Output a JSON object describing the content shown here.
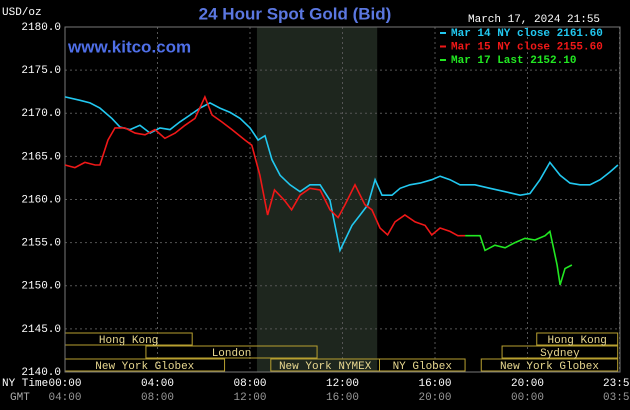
{
  "chart_data": {
    "type": "line",
    "title": "24 Hour Spot Gold (Bid)",
    "unit_label": "USD/oz",
    "timestamp": "March 17, 2024 21:55",
    "watermark": "www.kitco.com",
    "x_row_labels": [
      "NY Time",
      "GMT"
    ],
    "xlim": [
      0,
      24
    ],
    "ylim": [
      2140,
      2180
    ],
    "xticks": [
      {
        "value": 0,
        "label": "00:00"
      },
      {
        "value": 4,
        "label": "04:00"
      },
      {
        "value": 8,
        "label": "08:00"
      },
      {
        "value": 12,
        "label": "12:00"
      },
      {
        "value": 16,
        "label": "16:00"
      },
      {
        "value": 20,
        "label": "20:00"
      },
      {
        "value": 23.98,
        "label": "23:59"
      }
    ],
    "x2ticks": [
      {
        "value": 0,
        "label": "04:00"
      },
      {
        "value": 4,
        "label": "08:00"
      },
      {
        "value": 8,
        "label": "12:00"
      },
      {
        "value": 12,
        "label": "16:00"
      },
      {
        "value": 16,
        "label": "20:00"
      },
      {
        "value": 20,
        "label": "00:00"
      },
      {
        "value": 23.98,
        "label": "03:59"
      }
    ],
    "yticks": [
      {
        "value": 2180,
        "label": "2180.0"
      },
      {
        "value": 2175,
        "label": "2175.0"
      },
      {
        "value": 2170,
        "label": "2170.0"
      },
      {
        "value": 2165,
        "label": "2165.0"
      },
      {
        "value": 2160,
        "label": "2160.0"
      },
      {
        "value": 2155,
        "label": "2155.0"
      },
      {
        "value": 2150,
        "label": "2150.0"
      },
      {
        "value": 2145,
        "label": "2145.0"
      },
      {
        "value": 2140,
        "label": "2140.0"
      }
    ],
    "grid": true,
    "legend": "top-right",
    "highlight": [
      8.3,
      13.5
    ],
    "series": [
      {
        "name": "Mar 14 NY close 2161.60",
        "color": "#22c8f0",
        "x": [
          0,
          0.65,
          1.08,
          1.51,
          2.03,
          2.38,
          2.81,
          3.24,
          3.68,
          4.11,
          4.54,
          4.97,
          5.41,
          5.84,
          6.27,
          6.7,
          7.14,
          7.57,
          8.0,
          8.35,
          8.65,
          8.95,
          9.3,
          9.73,
          10.16,
          10.59,
          11.03,
          11.46,
          11.89,
          12.11,
          12.41,
          12.76,
          13.1,
          13.41,
          13.71,
          14.14,
          14.49,
          14.92,
          15.35,
          15.86,
          16.22,
          16.65,
          17.08,
          17.73,
          18.38,
          19.03,
          19.68,
          20.11,
          20.54,
          20.97,
          21.41,
          21.84,
          22.27,
          22.7,
          23.14,
          23.57,
          23.91
        ],
        "values": [
          2171.9,
          2171.5,
          2171.2,
          2170.6,
          2169.4,
          2168.4,
          2168.1,
          2168.6,
          2167.7,
          2168.3,
          2168.1,
          2169.0,
          2169.8,
          2170.6,
          2171.2,
          2170.6,
          2170.1,
          2169.4,
          2168.3,
          2166.9,
          2167.4,
          2164.6,
          2162.8,
          2161.7,
          2160.9,
          2161.7,
          2161.7,
          2159.9,
          2154.1,
          2155.3,
          2157.0,
          2158.2,
          2159.4,
          2162.3,
          2160.5,
          2160.5,
          2161.3,
          2161.7,
          2161.9,
          2162.3,
          2162.7,
          2162.3,
          2161.7,
          2161.7,
          2161.3,
          2160.9,
          2160.5,
          2160.7,
          2162.3,
          2164.3,
          2162.8,
          2161.9,
          2161.7,
          2161.7,
          2162.3,
          2163.2,
          2164.0
        ]
      },
      {
        "name": "Mar 15 NY close 2155.60",
        "color": "#f01818",
        "x": [
          0,
          0.43,
          0.86,
          1.3,
          1.51,
          1.86,
          2.16,
          2.59,
          3.03,
          3.46,
          3.89,
          4.32,
          4.76,
          5.19,
          5.62,
          6.05,
          6.36,
          6.78,
          7.22,
          7.78,
          8.08,
          8.43,
          8.76,
          9.06,
          9.49,
          9.8,
          10.16,
          10.59,
          11.03,
          11.46,
          11.81,
          12.11,
          12.54,
          12.97,
          13.27,
          13.62,
          13.95,
          14.27,
          14.7,
          15.14,
          15.57,
          15.86,
          16.22,
          16.65,
          16.99,
          17.3
        ],
        "values": [
          2164.0,
          2163.7,
          2164.3,
          2164.0,
          2164.0,
          2166.9,
          2168.3,
          2168.3,
          2167.7,
          2167.5,
          2168.1,
          2167.1,
          2167.7,
          2168.6,
          2169.4,
          2171.9,
          2169.8,
          2169.0,
          2168.1,
          2166.9,
          2166.3,
          2162.8,
          2158.2,
          2161.1,
          2159.9,
          2158.8,
          2160.5,
          2161.3,
          2161.1,
          2158.8,
          2157.9,
          2159.4,
          2161.7,
          2159.4,
          2158.8,
          2156.7,
          2155.9,
          2157.4,
          2158.2,
          2157.4,
          2157.0,
          2155.9,
          2156.7,
          2156.3,
          2155.8,
          2155.8
        ]
      },
      {
        "name": "Mar 17 Last 2152.10",
        "color": "#22e822",
        "x": [
          17.3,
          17.95,
          18.16,
          18.59,
          19.03,
          19.46,
          19.89,
          20.32,
          20.76,
          20.97,
          21.1,
          21.28,
          21.41,
          21.62,
          21.92
        ],
        "values": [
          2155.8,
          2155.8,
          2154.1,
          2154.7,
          2154.4,
          2155.0,
          2155.5,
          2155.3,
          2155.8,
          2156.3,
          2154.7,
          2152.4,
          2150.1,
          2152.0,
          2152.4
        ]
      }
    ],
    "sessions": [
      {
        "label": "Hong Kong",
        "start": 0,
        "end": 5.5
      },
      {
        "label": "Hong Kong",
        "start": 20.4,
        "end": 23.9
      },
      {
        "label": "London",
        "start": 3.5,
        "end": 10.9
      },
      {
        "label": "Sydney",
        "start": 18.9,
        "end": 23.9
      },
      {
        "label": "New York Globex",
        "start": 0,
        "end": 6.9
      },
      {
        "label": "New York NYMEX",
        "start": 8.9,
        "end": 13.6
      },
      {
        "label": "NY Globex",
        "start": 13.6,
        "end": 17.3
      },
      {
        "label": "New York Globex",
        "start": 18.0,
        "end": 23.9
      }
    ]
  }
}
